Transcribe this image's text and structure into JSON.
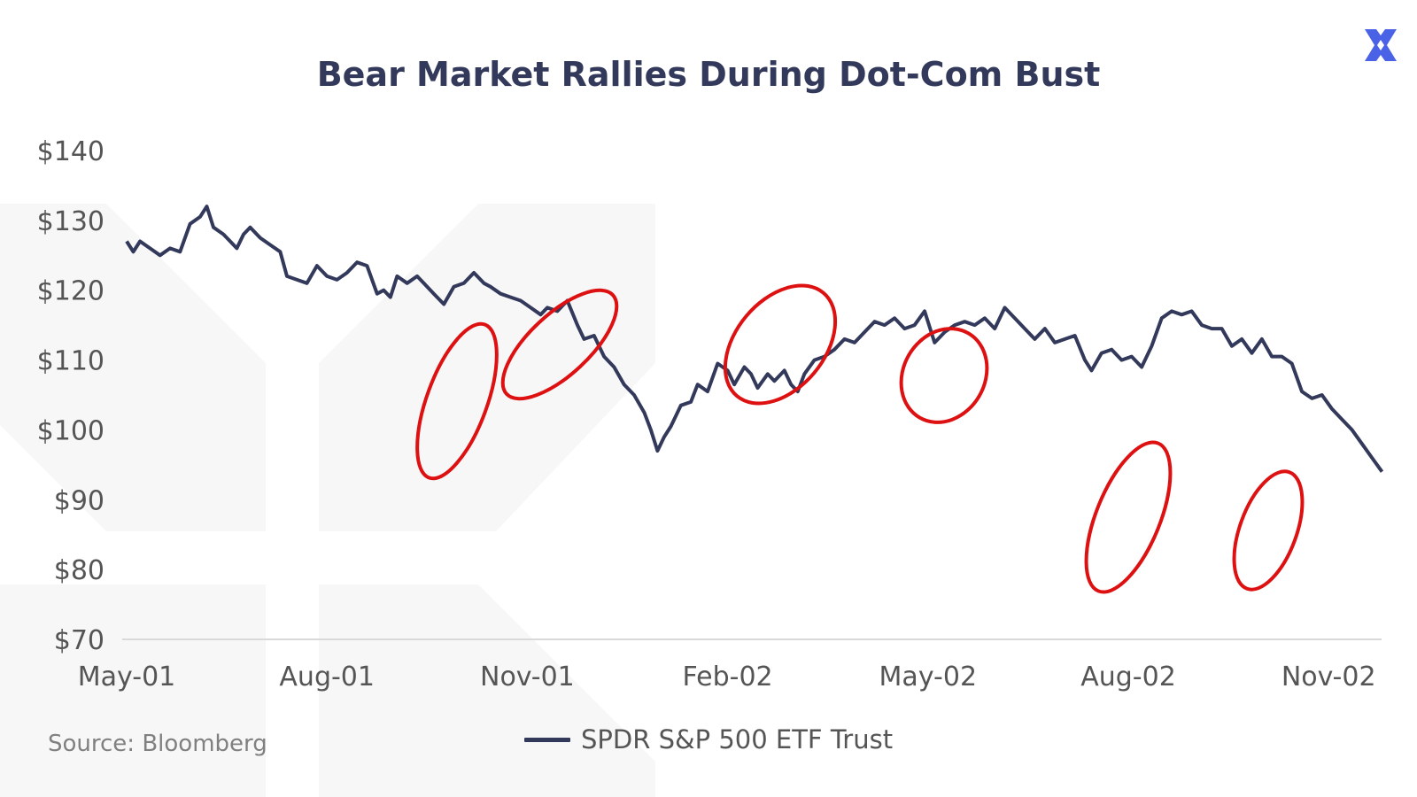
{
  "title": "Bear Market Rallies During Dot-Com Bust",
  "source": "Source: Bloomberg",
  "logo_icon": "brand-x-logo-icon",
  "colors": {
    "line": "#33395a",
    "highlight": "#dd1111",
    "axis_text": "#555555",
    "accent": "#4a63e6"
  },
  "chart_data": {
    "type": "line",
    "title": "Bear Market Rallies During Dot-Com Bust",
    "xlabel": "",
    "ylabel": "",
    "x_tick_labels": [
      "May-01",
      "Aug-01",
      "Nov-01",
      "Feb-02",
      "May-02",
      "Aug-02",
      "Nov-02"
    ],
    "y_tick_labels": [
      "$70",
      "$80",
      "$90",
      "$100",
      "$110",
      "$120",
      "$130",
      "$140"
    ],
    "ylim": [
      70,
      140
    ],
    "x_unit": "months since May-01",
    "xlim": [
      0,
      18.8
    ],
    "grid": false,
    "legend": "bottom-center",
    "series": [
      {
        "name": "SPDR S&P 500 ETF Trust",
        "points": [
          [
            0.0,
            127.0
          ],
          [
            0.1,
            125.5
          ],
          [
            0.2,
            127.0
          ],
          [
            0.35,
            126.0
          ],
          [
            0.5,
            125.0
          ],
          [
            0.65,
            126.0
          ],
          [
            0.8,
            125.5
          ],
          [
            0.95,
            129.5
          ],
          [
            1.1,
            130.5
          ],
          [
            1.2,
            132.0
          ],
          [
            1.3,
            129.0
          ],
          [
            1.45,
            128.0
          ],
          [
            1.55,
            127.0
          ],
          [
            1.65,
            126.0
          ],
          [
            1.75,
            128.0
          ],
          [
            1.85,
            129.0
          ],
          [
            2.0,
            127.5
          ],
          [
            2.15,
            126.5
          ],
          [
            2.3,
            125.5
          ],
          [
            2.4,
            122.0
          ],
          [
            2.55,
            121.5
          ],
          [
            2.7,
            121.0
          ],
          [
            2.85,
            123.5
          ],
          [
            3.0,
            122.0
          ],
          [
            3.15,
            121.5
          ],
          [
            3.3,
            122.5
          ],
          [
            3.45,
            124.0
          ],
          [
            3.6,
            123.5
          ],
          [
            3.75,
            119.5
          ],
          [
            3.85,
            120.0
          ],
          [
            3.95,
            119.0
          ],
          [
            4.05,
            122.0
          ],
          [
            4.2,
            121.0
          ],
          [
            4.35,
            122.0
          ],
          [
            4.45,
            121.0
          ],
          [
            4.6,
            119.5
          ],
          [
            4.75,
            118.0
          ],
          [
            4.9,
            120.5
          ],
          [
            5.05,
            121.0
          ],
          [
            5.2,
            122.5
          ],
          [
            5.35,
            121.0
          ],
          [
            5.45,
            120.5
          ],
          [
            5.6,
            119.5
          ],
          [
            5.75,
            119.0
          ],
          [
            5.9,
            118.5
          ],
          [
            6.05,
            117.5
          ],
          [
            6.2,
            116.5
          ],
          [
            6.3,
            117.5
          ],
          [
            6.45,
            117.0
          ],
          [
            6.6,
            118.5
          ],
          [
            6.75,
            115.0
          ],
          [
            6.85,
            113.0
          ],
          [
            7.0,
            113.5
          ],
          [
            7.15,
            110.5
          ],
          [
            7.3,
            109.0
          ],
          [
            7.45,
            106.5
          ],
          [
            7.6,
            105.0
          ],
          [
            7.75,
            102.5
          ],
          [
            7.85,
            100.0
          ],
          [
            7.95,
            97.0
          ],
          [
            8.05,
            99.0
          ],
          [
            8.15,
            100.5
          ],
          [
            8.3,
            103.5
          ],
          [
            8.45,
            104.0
          ],
          [
            8.55,
            106.5
          ],
          [
            8.7,
            105.5
          ],
          [
            8.85,
            109.5
          ],
          [
            9.0,
            108.5
          ],
          [
            9.1,
            106.5
          ],
          [
            9.25,
            109.0
          ],
          [
            9.35,
            108.0
          ],
          [
            9.45,
            106.0
          ],
          [
            9.6,
            108.0
          ],
          [
            9.7,
            107.0
          ],
          [
            9.85,
            108.5
          ],
          [
            9.95,
            106.5
          ],
          [
            10.05,
            105.5
          ],
          [
            10.15,
            108.0
          ],
          [
            10.3,
            110.0
          ],
          [
            10.45,
            110.5
          ],
          [
            10.6,
            111.5
          ],
          [
            10.75,
            113.0
          ],
          [
            10.9,
            112.5
          ],
          [
            11.05,
            114.0
          ],
          [
            11.2,
            115.5
          ],
          [
            11.35,
            115.0
          ],
          [
            11.5,
            116.0
          ],
          [
            11.65,
            114.5
          ],
          [
            11.8,
            115.0
          ],
          [
            11.95,
            117.0
          ],
          [
            12.1,
            112.5
          ],
          [
            12.25,
            114.0
          ],
          [
            12.4,
            115.0
          ],
          [
            12.55,
            115.5
          ],
          [
            12.7,
            115.0
          ],
          [
            12.85,
            116.0
          ],
          [
            13.0,
            114.5
          ],
          [
            13.15,
            117.5
          ],
          [
            13.3,
            116.0
          ],
          [
            13.45,
            114.5
          ],
          [
            13.6,
            113.0
          ],
          [
            13.75,
            114.5
          ],
          [
            13.9,
            112.5
          ],
          [
            14.05,
            113.0
          ],
          [
            14.2,
            113.5
          ],
          [
            14.35,
            110.0
          ],
          [
            14.45,
            108.5
          ],
          [
            14.6,
            111.0
          ],
          [
            14.75,
            111.5
          ],
          [
            14.9,
            110.0
          ],
          [
            15.05,
            110.5
          ],
          [
            15.2,
            109.0
          ],
          [
            15.35,
            112.0
          ],
          [
            15.5,
            116.0
          ],
          [
            15.65,
            117.0
          ],
          [
            15.8,
            116.5
          ],
          [
            15.95,
            117.0
          ],
          [
            16.1,
            115.0
          ],
          [
            16.25,
            114.5
          ],
          [
            16.4,
            114.5
          ],
          [
            16.55,
            112.0
          ],
          [
            16.7,
            113.0
          ],
          [
            16.85,
            111.0
          ],
          [
            17.0,
            113.0
          ],
          [
            17.15,
            110.5
          ],
          [
            17.3,
            110.5
          ],
          [
            17.45,
            109.5
          ],
          [
            17.6,
            105.5
          ],
          [
            17.75,
            104.5
          ],
          [
            17.9,
            105.0
          ],
          [
            18.05,
            103.0
          ],
          [
            18.2,
            101.5
          ],
          [
            18.35,
            100.0
          ],
          [
            18.5,
            98.0
          ],
          [
            18.65,
            96.0
          ],
          [
            18.8,
            94.0
          ]
        ]
      }
    ]
  },
  "legend_label": "SPDR S&P 500 ETF Trust"
}
